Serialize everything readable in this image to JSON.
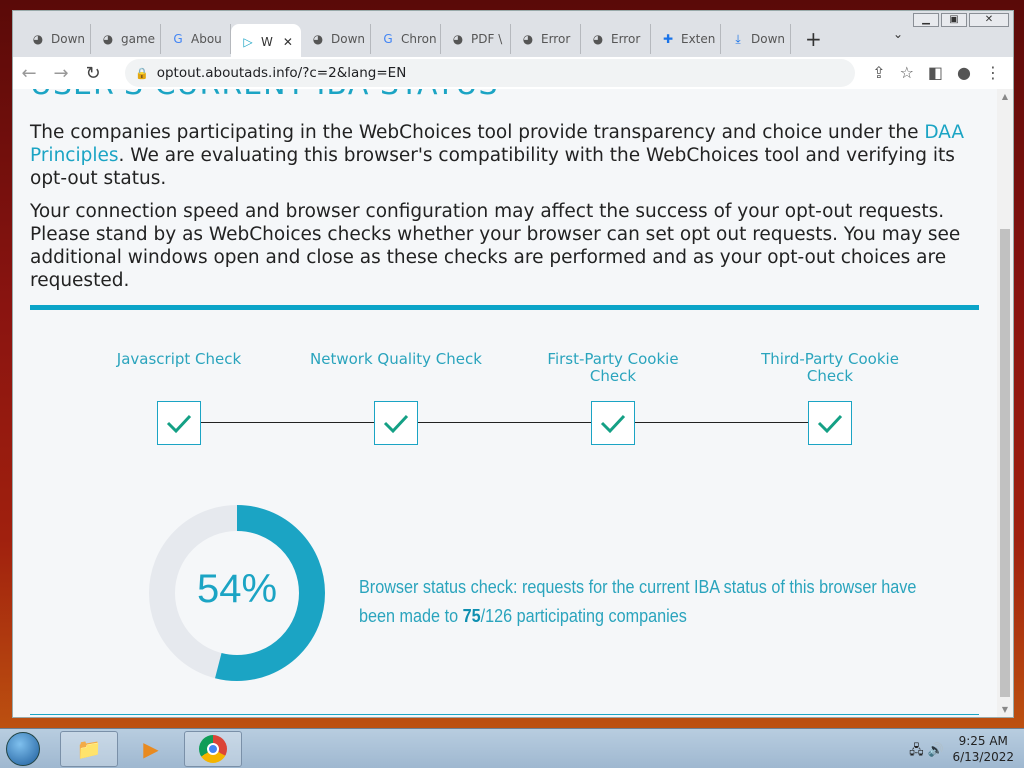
{
  "window": {
    "controls": [
      "minimize",
      "restore",
      "close"
    ]
  },
  "tabs": [
    {
      "label": "Down",
      "icon": "globe-icon"
    },
    {
      "label": "game",
      "icon": "globe-icon"
    },
    {
      "label": "Abou",
      "icon": "google-icon"
    },
    {
      "label": "W",
      "icon": "play-icon",
      "active": true
    },
    {
      "label": "Down",
      "icon": "globe-icon"
    },
    {
      "label": "Chron",
      "icon": "google-icon"
    },
    {
      "label": "PDF \\",
      "icon": "globe-icon"
    },
    {
      "label": "Error",
      "icon": "globe-icon"
    },
    {
      "label": "Error",
      "icon": "globe-icon"
    },
    {
      "label": "Exten",
      "icon": "puzzle-icon"
    },
    {
      "label": "Down",
      "icon": "download-icon"
    }
  ],
  "toolbar": {
    "url": "optout.aboutads.info/?c=2&lang=EN"
  },
  "page": {
    "heading": "USER'S CURRENT IBA STATUS",
    "para1_a": "The companies participating in the WebChoices tool provide transparency and choice under the ",
    "para1_link": "DAA Principles",
    "para1_b": ". We are evaluating this browser's compatibility with the WebChoices tool and verifying its opt-out status.",
    "para2": "Your connection speed and browser configuration may affect the success of your opt-out requests. Please stand by as WebChoices checks whether your browser can set opt out requests. You may see additional windows open and close as these checks are performed and as your opt-out choices are requested.",
    "checks": [
      {
        "label": "Javascript Check",
        "passed": true
      },
      {
        "label": "Network Quality Check",
        "passed": true
      },
      {
        "label": "First-Party Cookie Check",
        "passed": true
      },
      {
        "label": "Third-Party Cookie Check",
        "passed": true
      }
    ],
    "progress_percent": 54,
    "progress_label": "54%",
    "status_a": "Browser status check: requests for the current IBA status of this browser have been made to ",
    "status_done": "75",
    "status_b": "/126 participating companies",
    "accent_color": "#1ba4c4"
  },
  "taskbar": {
    "time": "9:25 AM",
    "date": "6/13/2022"
  }
}
